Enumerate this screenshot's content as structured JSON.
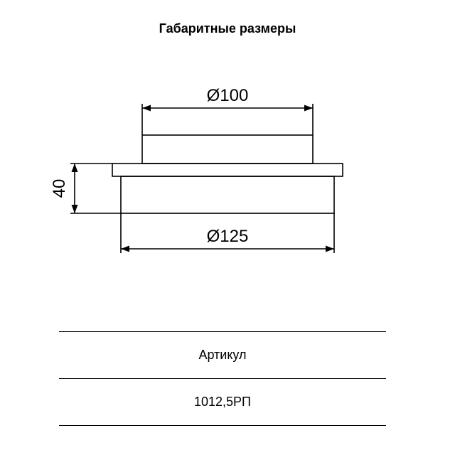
{
  "title": "Габаритные размеры",
  "drawing": {
    "stroke": "#000000",
    "stroke_width": 1.6,
    "background": "#ffffff",
    "font_family": "Arial",
    "dim_font_size": 24,
    "dim_top": {
      "label": "Ø100"
    },
    "dim_bottom": {
      "label": "Ø125"
    },
    "dim_left": {
      "label": "40"
    }
  },
  "table": {
    "header": "Артикул",
    "value": "1012,5РП",
    "line_color": "#000000"
  }
}
